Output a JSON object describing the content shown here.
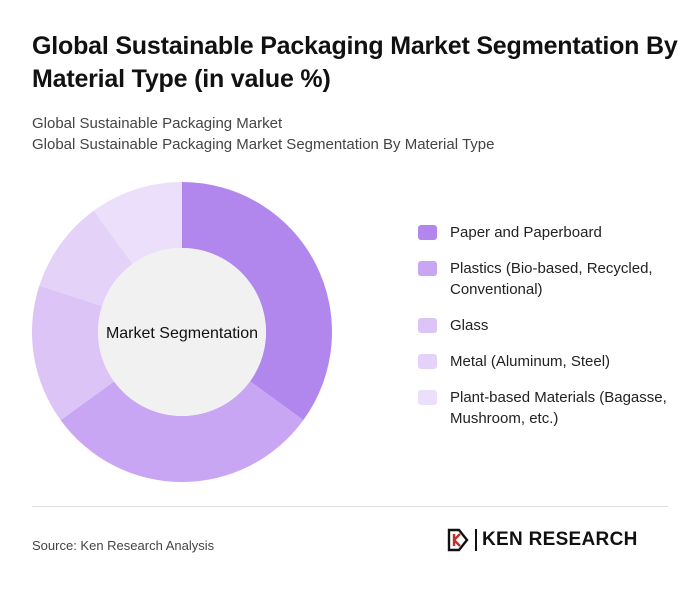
{
  "header": {
    "title": "Global Sustainable Packaging Market Segmentation By Material Type (in value %)",
    "subtitle_line1": "Global Sustainable Packaging Market",
    "subtitle_line2": "Global Sustainable Packaging Market Segmentation By Material Type"
  },
  "chart_data": {
    "type": "pie",
    "variant": "donut",
    "center_label": "Market Segmentation",
    "categories": [
      "Paper and Paperboard",
      "Plastics (Bio-based, Recycled, Conventional)",
      "Glass",
      "Metal (Aluminum, Steel)",
      "Plant-based Materials (Bagasse, Mushroom, etc.)"
    ],
    "values": [
      35,
      30,
      15,
      10,
      10
    ],
    "colors": [
      "#b187ee",
      "#c9a6f3",
      "#dcc4f7",
      "#e4d2f9",
      "#ebdffb"
    ],
    "legend_position": "right"
  },
  "footer": {
    "source": "Source: Ken Research Analysis",
    "logo_text": "KEN RESEARCH"
  }
}
